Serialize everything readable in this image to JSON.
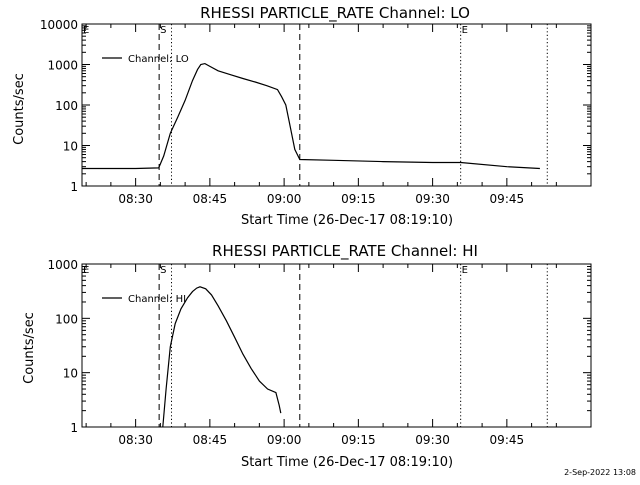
{
  "footer_timestamp": "2-Sep-2022 13:08",
  "chart_data": [
    {
      "type": "line",
      "title": "RHESSI PARTICLE_RATE Channel: LO",
      "xlabel": "Start Time (26-Dec-17 08:19:10)",
      "ylabel": "Counts/sec",
      "y_scale": "log",
      "ylim": [
        1,
        10000
      ],
      "xlim": [
        "08:19:10",
        "10:02:00"
      ],
      "x_ticks": [
        "08:30",
        "08:45",
        "09:00",
        "09:15",
        "09:30",
        "09:45"
      ],
      "y_ticks": [
        {
          "value": 1,
          "label": "1"
        },
        {
          "value": 10,
          "label": "10"
        },
        {
          "value": 100,
          "label": "100"
        },
        {
          "value": 1000,
          "label": "1000"
        },
        {
          "value": 10000,
          "label": "10000"
        }
      ],
      "legend": {
        "entry": "Channel: LO",
        "position": "top-left"
      },
      "markers": [
        {
          "label": "E",
          "time": "08:19:10",
          "style": "dotted"
        },
        {
          "label": "S",
          "time": "08:34:45",
          "style": "dashed"
        },
        {
          "label": "",
          "time": "08:37:15",
          "style": "dotted"
        },
        {
          "label": "",
          "time": "09:03:10",
          "style": "dashed"
        },
        {
          "label": "E",
          "time": "09:35:40",
          "style": "dotted"
        },
        {
          "label": "",
          "time": "09:53:10",
          "style": "dotted"
        }
      ],
      "series": [
        {
          "name": "Channel: LO",
          "x": [
            "08:19:10",
            "08:30:00",
            "08:34:40",
            "08:35:40",
            "08:37:00",
            "08:38:30",
            "08:40:00",
            "08:41:30",
            "08:42:30",
            "08:43:10",
            "08:44:00",
            "08:45:00",
            "08:46:40",
            "08:49:10",
            "08:51:40",
            "08:54:10",
            "08:56:30",
            "08:58:40",
            "08:59:30",
            "09:00:20",
            "09:01:00",
            "09:02:10",
            "09:03:10",
            "09:10:00",
            "09:20:00",
            "09:30:00",
            "09:35:40",
            "09:45:00",
            "09:51:40"
          ],
          "values": [
            2.7,
            2.7,
            2.8,
            5.5,
            20,
            50,
            130,
            400,
            750,
            1000,
            1050,
            900,
            700,
            560,
            450,
            370,
            300,
            240,
            160,
            100,
            40,
            8,
            4.5,
            4.3,
            4,
            3.8,
            3.8,
            3,
            2.7
          ]
        }
      ]
    },
    {
      "type": "line",
      "title": "RHESSI PARTICLE_RATE Channel: HI",
      "xlabel": "Start Time (26-Dec-17 08:19:10)",
      "ylabel": "Counts/sec",
      "y_scale": "log",
      "ylim": [
        1,
        1000
      ],
      "xlim": [
        "08:19:10",
        "10:02:00"
      ],
      "x_ticks": [
        "08:30",
        "08:45",
        "09:00",
        "09:15",
        "09:30",
        "09:45"
      ],
      "y_ticks": [
        {
          "value": 1,
          "label": "1"
        },
        {
          "value": 10,
          "label": "10"
        },
        {
          "value": 100,
          "label": "100"
        },
        {
          "value": 1000,
          "label": "1000"
        }
      ],
      "legend": {
        "entry": "Channel: HI",
        "position": "top-left"
      },
      "markers": [
        {
          "label": "E",
          "time": "08:19:10",
          "style": "dotted"
        },
        {
          "label": "S",
          "time": "08:34:45",
          "style": "dashed"
        },
        {
          "label": "",
          "time": "08:37:15",
          "style": "dotted"
        },
        {
          "label": "",
          "time": "09:03:10",
          "style": "dashed"
        },
        {
          "label": "E",
          "time": "09:35:40",
          "style": "dotted"
        },
        {
          "label": "",
          "time": "09:53:10",
          "style": "dotted"
        }
      ],
      "series": [
        {
          "name": "Channel: HI",
          "x": [
            "08:35:30",
            "08:36:10",
            "08:37:00",
            "08:38:00",
            "08:39:10",
            "08:40:30",
            "08:41:30",
            "08:42:20",
            "08:43:00",
            "08:44:10",
            "08:45:20",
            "08:46:40",
            "08:48:20",
            "08:50:00",
            "08:51:40",
            "08:53:20",
            "08:55:00",
            "08:56:40",
            "08:58:20",
            "08:59:00",
            "08:59:20"
          ],
          "values": [
            1,
            5,
            30,
            80,
            150,
            240,
            310,
            360,
            380,
            350,
            270,
            170,
            90,
            45,
            22,
            12,
            7,
            5,
            4.3,
            2.5,
            1.8
          ]
        }
      ]
    }
  ]
}
